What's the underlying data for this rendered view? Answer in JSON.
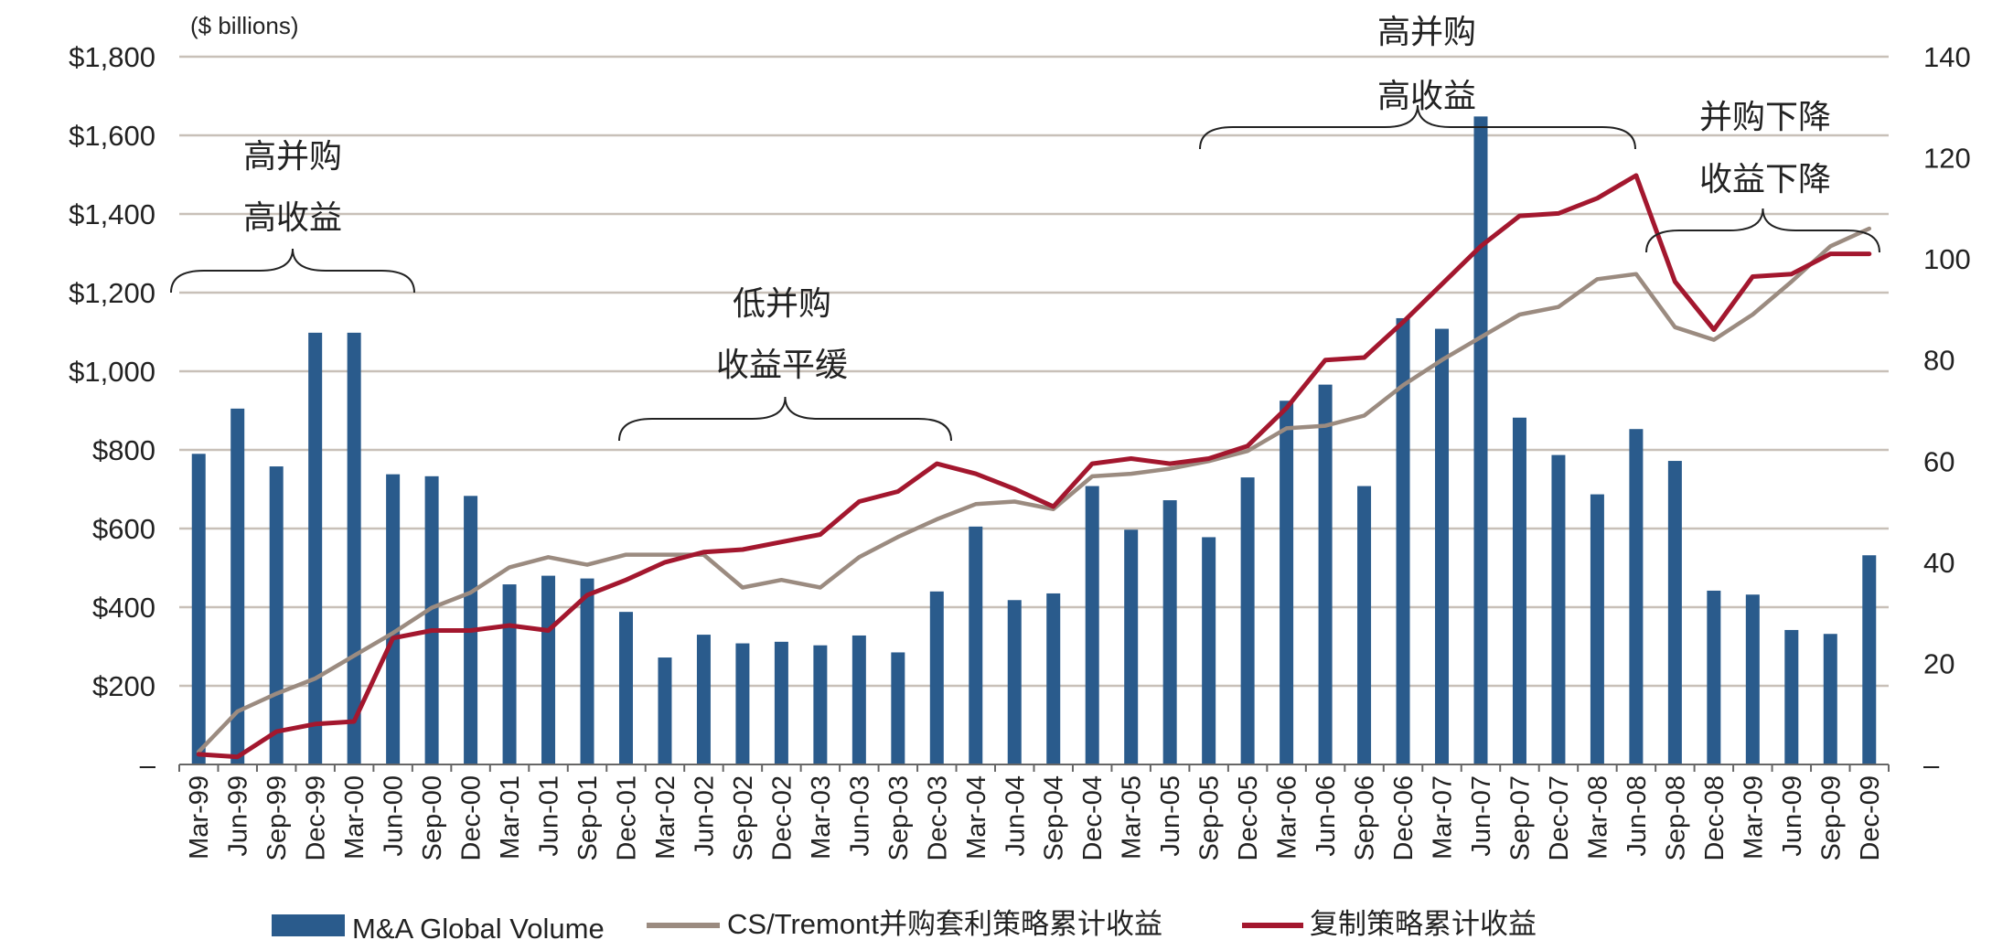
{
  "chart_data": {
    "type": "bar",
    "unit_label": "($ billions)",
    "categories": [
      "Mar-99",
      "Jun-99",
      "Sep-99",
      "Dec-99",
      "Mar-00",
      "Jun-00",
      "Sep-00",
      "Dec-00",
      "Mar-01",
      "Jun-01",
      "Sep-01",
      "Dec-01",
      "Mar-02",
      "Jun-02",
      "Sep-02",
      "Dec-02",
      "Mar-03",
      "Jun-03",
      "Sep-03",
      "Dec-03",
      "Mar-04",
      "Jun-04",
      "Sep-04",
      "Dec-04",
      "Mar-05",
      "Jun-05",
      "Sep-05",
      "Dec-05",
      "Mar-06",
      "Jun-06",
      "Sep-06",
      "Dec-06",
      "Mar-07",
      "Jun-07",
      "Sep-07",
      "Dec-07",
      "Mar-08",
      "Jun-08",
      "Sep-08",
      "Dec-08",
      "Mar-09",
      "Jun-09",
      "Sep-09",
      "Dec-09"
    ],
    "y_left": {
      "min": 0,
      "max": 1800,
      "ticks": [
        0,
        200,
        400,
        600,
        800,
        1000,
        1200,
        1400,
        1600,
        1800
      ],
      "tick_labels": [
        "–",
        "$200",
        "$400",
        "$600",
        "$800",
        "$1,000",
        "$1,200",
        "$1,400",
        "$1,600",
        "$1,800"
      ]
    },
    "y_right": {
      "min": 0,
      "max": 140,
      "ticks": [
        0,
        20,
        40,
        60,
        80,
        100,
        120,
        140
      ],
      "tick_labels": [
        "–",
        "20",
        "40",
        "60",
        "80",
        "100",
        "120",
        "140"
      ]
    },
    "grid": true,
    "legend_position": "bottom",
    "series": [
      {
        "name": "M&A Global Volume",
        "type": "bar",
        "axis": "left",
        "color": "#2a5b8c",
        "values": [
          790,
          905,
          758,
          1098,
          1098,
          738,
          733,
          683,
          458,
          480,
          473,
          388,
          272,
          330,
          308,
          312,
          303,
          328,
          285,
          440,
          605,
          418,
          435,
          708,
          597,
          672,
          578,
          730,
          925,
          966,
          708,
          1135,
          1108,
          1648,
          882,
          787,
          687,
          853,
          772,
          442,
          432,
          342,
          332,
          532
        ]
      },
      {
        "name": "CS/Tremont并购套利策略累计收益",
        "type": "line",
        "axis": "right",
        "color": "#9b8b80",
        "values": [
          2.5,
          10.5,
          14,
          17,
          21.5,
          26,
          31,
          34,
          39,
          41,
          39.5,
          41.5,
          41.5,
          41.5,
          35,
          36.5,
          35,
          41,
          45,
          48.5,
          51.5,
          52,
          50.5,
          57,
          57.5,
          58.5,
          60,
          62,
          66.5,
          67,
          69,
          75,
          80,
          84.5,
          89,
          90.5,
          96,
          97,
          86.5,
          84,
          89,
          95.5,
          102.5,
          106
        ]
      },
      {
        "name": "复制策略累计收益",
        "type": "line",
        "axis": "right",
        "color": "#a3172e",
        "values": [
          2,
          1.5,
          6.5,
          8,
          8.5,
          25,
          26.5,
          26.5,
          27.5,
          26.5,
          33.5,
          36.5,
          40,
          42,
          42.5,
          44,
          45.5,
          52,
          54,
          59.5,
          57.5,
          54.5,
          51,
          59.5,
          60.5,
          59.5,
          60.5,
          63,
          70.5,
          80,
          80.5,
          87.5,
          95,
          102.5,
          108.5,
          109,
          112,
          116.5,
          95.5,
          86,
          96.5,
          97,
          101,
          101
        ]
      }
    ],
    "annotations": [
      {
        "lines": [
          "高并购",
          "高收益"
        ]
      },
      {
        "lines": [
          "低并购",
          "收益平缓"
        ]
      },
      {
        "lines": [
          "高并购",
          "高收益"
        ]
      },
      {
        "lines": [
          "并购下降",
          "收益下降"
        ]
      }
    ]
  }
}
